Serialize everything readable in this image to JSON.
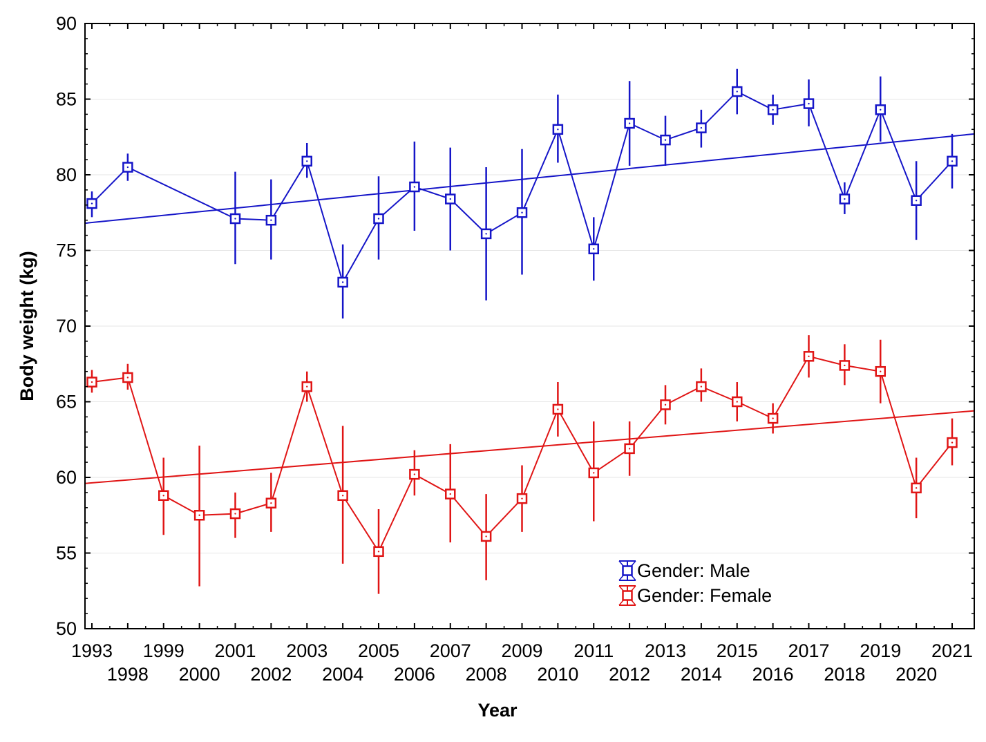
{
  "chart_data": {
    "type": "line",
    "title": "",
    "xlabel": "Year",
    "ylabel": "Body weight (kg)",
    "ylim": [
      50,
      90
    ],
    "yticks": [
      50,
      55,
      60,
      65,
      70,
      75,
      80,
      85,
      90
    ],
    "grid": true,
    "legend_position": "bottom-right",
    "categories": [
      "1993",
      "1998",
      "1999",
      "2000",
      "2001",
      "2002",
      "2003",
      "2004",
      "2005",
      "2006",
      "2007",
      "2008",
      "2009",
      "2010",
      "2011",
      "2012",
      "2013",
      "2014",
      "2015",
      "2016",
      "2017",
      "2018",
      "2019",
      "2020",
      "2021"
    ],
    "category_rows": [
      "top",
      "bottom",
      "top",
      "bottom",
      "top",
      "bottom",
      "top",
      "bottom",
      "top",
      "bottom",
      "top",
      "bottom",
      "top",
      "bottom",
      "top",
      "bottom",
      "top",
      "bottom",
      "top",
      "bottom",
      "top",
      "bottom",
      "top",
      "bottom",
      "top"
    ],
    "series": [
      {
        "name": "Gender: Male",
        "color": "#1515c8",
        "values": [
          78.1,
          80.5,
          null,
          null,
          77.1,
          77.0,
          80.9,
          72.9,
          77.1,
          79.2,
          78.4,
          76.1,
          77.5,
          83.0,
          75.1,
          83.4,
          82.3,
          83.1,
          85.5,
          84.3,
          84.7,
          78.4,
          84.3,
          78.3,
          80.9
        ],
        "error_low": [
          77.2,
          79.6,
          null,
          null,
          74.1,
          74.4,
          79.8,
          70.5,
          74.4,
          76.3,
          75.0,
          71.7,
          73.4,
          80.8,
          73.0,
          80.6,
          80.6,
          81.8,
          84.0,
          83.3,
          83.2,
          77.4,
          82.2,
          75.7,
          79.1
        ],
        "error_high": [
          78.9,
          81.4,
          null,
          null,
          80.2,
          79.7,
          82.1,
          75.4,
          79.9,
          82.2,
          81.8,
          80.5,
          81.7,
          85.3,
          77.2,
          86.2,
          83.9,
          84.3,
          87.0,
          85.3,
          86.3,
          79.5,
          86.5,
          80.9,
          82.7
        ],
        "trend": [
          76.8,
          82.7
        ]
      },
      {
        "name": "Gender: Female",
        "color": "#e01515",
        "values": [
          66.3,
          66.6,
          58.8,
          57.5,
          57.6,
          58.3,
          66.0,
          58.8,
          55.1,
          60.2,
          58.9,
          56.1,
          58.6,
          64.5,
          60.3,
          61.9,
          64.8,
          66.0,
          65.0,
          63.9,
          68.0,
          67.4,
          67.0,
          59.3,
          62.3
        ],
        "error_low": [
          65.6,
          65.8,
          56.2,
          52.8,
          56.0,
          56.4,
          65.0,
          54.3,
          52.3,
          58.8,
          55.7,
          53.2,
          56.4,
          62.7,
          57.1,
          60.1,
          63.5,
          65.0,
          63.7,
          62.9,
          66.6,
          66.1,
          64.9,
          57.3,
          60.8
        ],
        "error_high": [
          67.1,
          67.5,
          61.3,
          62.1,
          59.0,
          60.3,
          67.0,
          63.4,
          57.9,
          61.8,
          62.2,
          58.9,
          60.8,
          66.3,
          63.7,
          63.7,
          66.1,
          67.2,
          66.3,
          64.9,
          69.4,
          68.8,
          69.1,
          61.3,
          63.9
        ],
        "trend": [
          59.6,
          64.4
        ]
      }
    ]
  }
}
